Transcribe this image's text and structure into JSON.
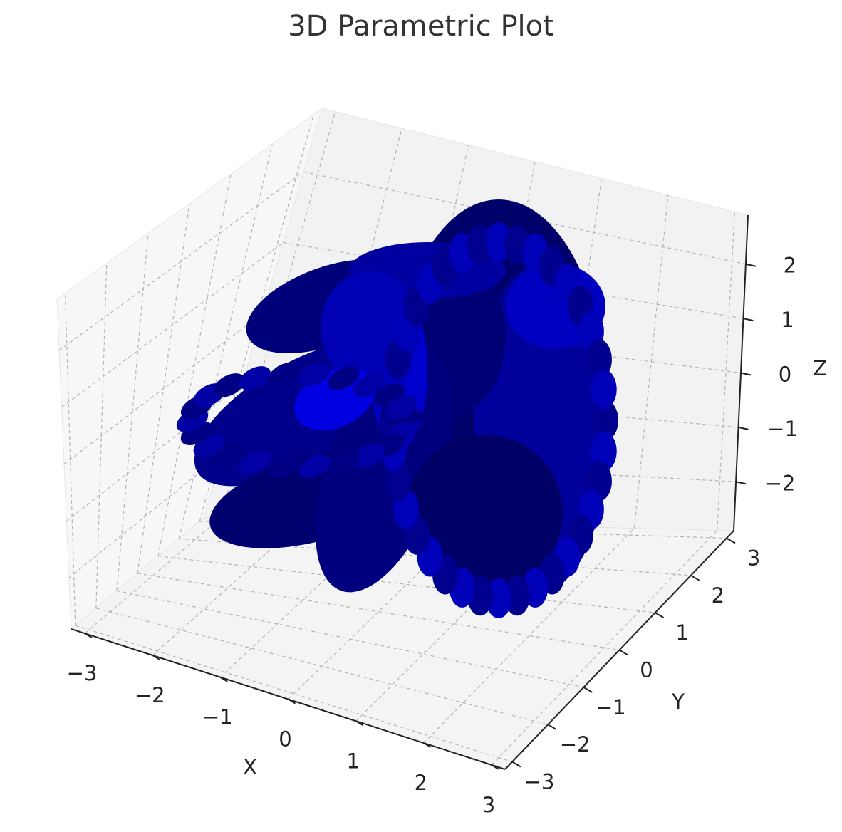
{
  "chart_data": {
    "type": "surface3d",
    "title": "3D Parametric Plot",
    "xlabel": "X",
    "ylabel": "Y",
    "zlabel": "Z",
    "xticks": [
      "−3",
      "−2",
      "−1",
      "0",
      "1",
      "2",
      "3"
    ],
    "yticks": [
      "−3",
      "−2",
      "−1",
      "0",
      "1",
      "2",
      "3"
    ],
    "zticks": [
      "−2",
      "−1",
      "0",
      "1",
      "2"
    ],
    "xlim": [
      -3.2,
      3.2
    ],
    "ylim": [
      -3.2,
      3.2
    ],
    "zlim": [
      -2.9,
      2.9
    ],
    "grid": true,
    "surface_color": "#0000ff",
    "pane_colors": [
      "#f2f2f2",
      "#f7f7f7",
      "#f4f4f4"
    ]
  }
}
